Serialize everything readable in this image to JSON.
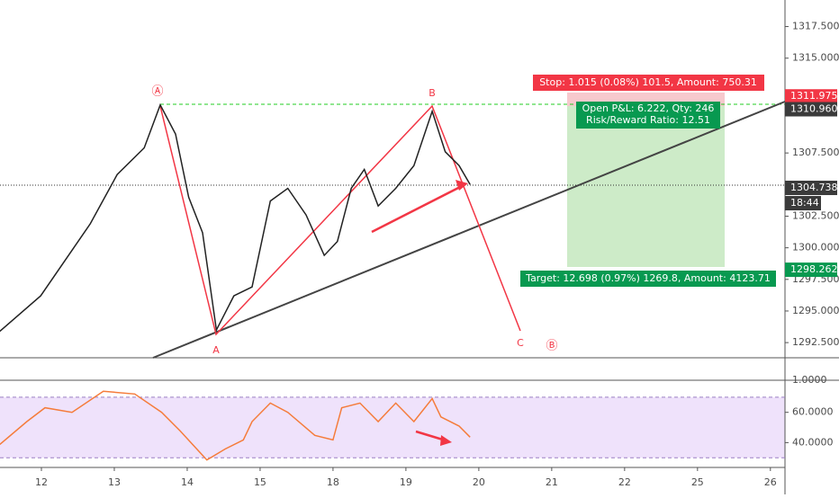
{
  "chart_data": {
    "type": "line",
    "xlim": [
      -0.568,
      10.2
    ],
    "xticks": [
      {
        "value": 0,
        "label": "12"
      },
      {
        "value": 1,
        "label": "13"
      },
      {
        "value": 2,
        "label": "14"
      },
      {
        "value": 3,
        "label": "15"
      },
      {
        "value": 4,
        "label": "18"
      },
      {
        "value": 5,
        "label": "19"
      },
      {
        "value": 6,
        "label": "20"
      },
      {
        "value": 7,
        "label": "21"
      },
      {
        "value": 8,
        "label": "22"
      },
      {
        "value": 9,
        "label": "25"
      },
      {
        "value": 10,
        "label": "26"
      }
    ],
    "ylim": [
      1291.3,
      1319.6
    ],
    "yticks": [
      {
        "value": 1292.5,
        "label": "1292.500"
      },
      {
        "value": 1295,
        "label": "1295.000"
      },
      {
        "value": 1297.5,
        "label": "1297.500"
      },
      {
        "value": 1300,
        "label": "1300.000"
      },
      {
        "value": 1302.5,
        "label": "1302.500"
      },
      {
        "value": 1307.5,
        "label": "1307.500"
      },
      {
        "value": 1315,
        "label": "1315.000"
      },
      {
        "value": 1317.5,
        "label": "1317.500"
      }
    ],
    "price_labels": [
      {
        "value": 1311.975,
        "label": "1311.975",
        "color": "#f23645"
      },
      {
        "value": 1310.96,
        "label": "1310.960",
        "color": "#3b3b3b"
      },
      {
        "value": 1304.738,
        "label": "1304.738",
        "color": "#3b3b3b"
      },
      {
        "value": 1298.262,
        "label": "1298.262",
        "color": "#089950"
      }
    ],
    "countdown": "18:44",
    "price": {
      "color": "#222222",
      "x": [
        -0.57,
        -0.01,
        0.67,
        1.04,
        1.41,
        1.63,
        1.84,
        2.02,
        2.21,
        2.4,
        2.64,
        2.89,
        3.14,
        3.38,
        3.63,
        3.88,
        4.06,
        4.25,
        4.43,
        4.62,
        4.86,
        5.11,
        5.36,
        5.54,
        5.73,
        5.88
      ],
      "values": [
        1293.4,
        1296.2,
        1301.9,
        1305.8,
        1307.9,
        1311.3,
        1309.0,
        1304.0,
        1301.2,
        1293.5,
        1296.2,
        1296.9,
        1303.7,
        1304.7,
        1302.6,
        1299.4,
        1300.5,
        1304.7,
        1306.2,
        1303.3,
        1304.7,
        1306.5,
        1310.8,
        1307.6,
        1306.5,
        1305.0
      ]
    },
    "rsi": {
      "color": "#f57c3b",
      "ylim": [
        23.6,
        81.2
      ],
      "yticks": [
        {
          "value": 60,
          "label": "60.0000"
        },
        {
          "value": 40,
          "label": "40.0000"
        }
      ],
      "band": [
        30,
        70
      ],
      "top_label": "1.0000",
      "x": [
        -0.57,
        -0.2,
        0.05,
        0.42,
        0.85,
        1.28,
        1.65,
        1.9,
        2.27,
        2.52,
        2.77,
        2.89,
        3.14,
        3.38,
        3.75,
        4.0,
        4.12,
        4.37,
        4.62,
        4.86,
        5.11,
        5.36,
        5.48,
        5.73,
        5.88
      ],
      "values": [
        38.8,
        53.9,
        63.0,
        60.0,
        73.9,
        72.1,
        60.0,
        47.9,
        28.5,
        35.8,
        41.8,
        53.9,
        66.1,
        60.0,
        44.8,
        41.8,
        63.0,
        66.1,
        53.9,
        66.1,
        53.9,
        69.1,
        57.0,
        50.9,
        43.6
      ]
    },
    "wave_labels": [
      "Ⓐ",
      "B",
      "A",
      "C",
      "Ⓑ"
    ],
    "stop_box": "Stop: 1.015 (0.08%) 101.5, Amount: 750.31",
    "pnl_box": "Open P&L: 6.222, Qty: 246",
    "rr_box": "Risk/Reward Ratio: 12.51",
    "target_box": "Target: 12.698 (0.97%) 1269.8, Amount: 4123.71"
  }
}
